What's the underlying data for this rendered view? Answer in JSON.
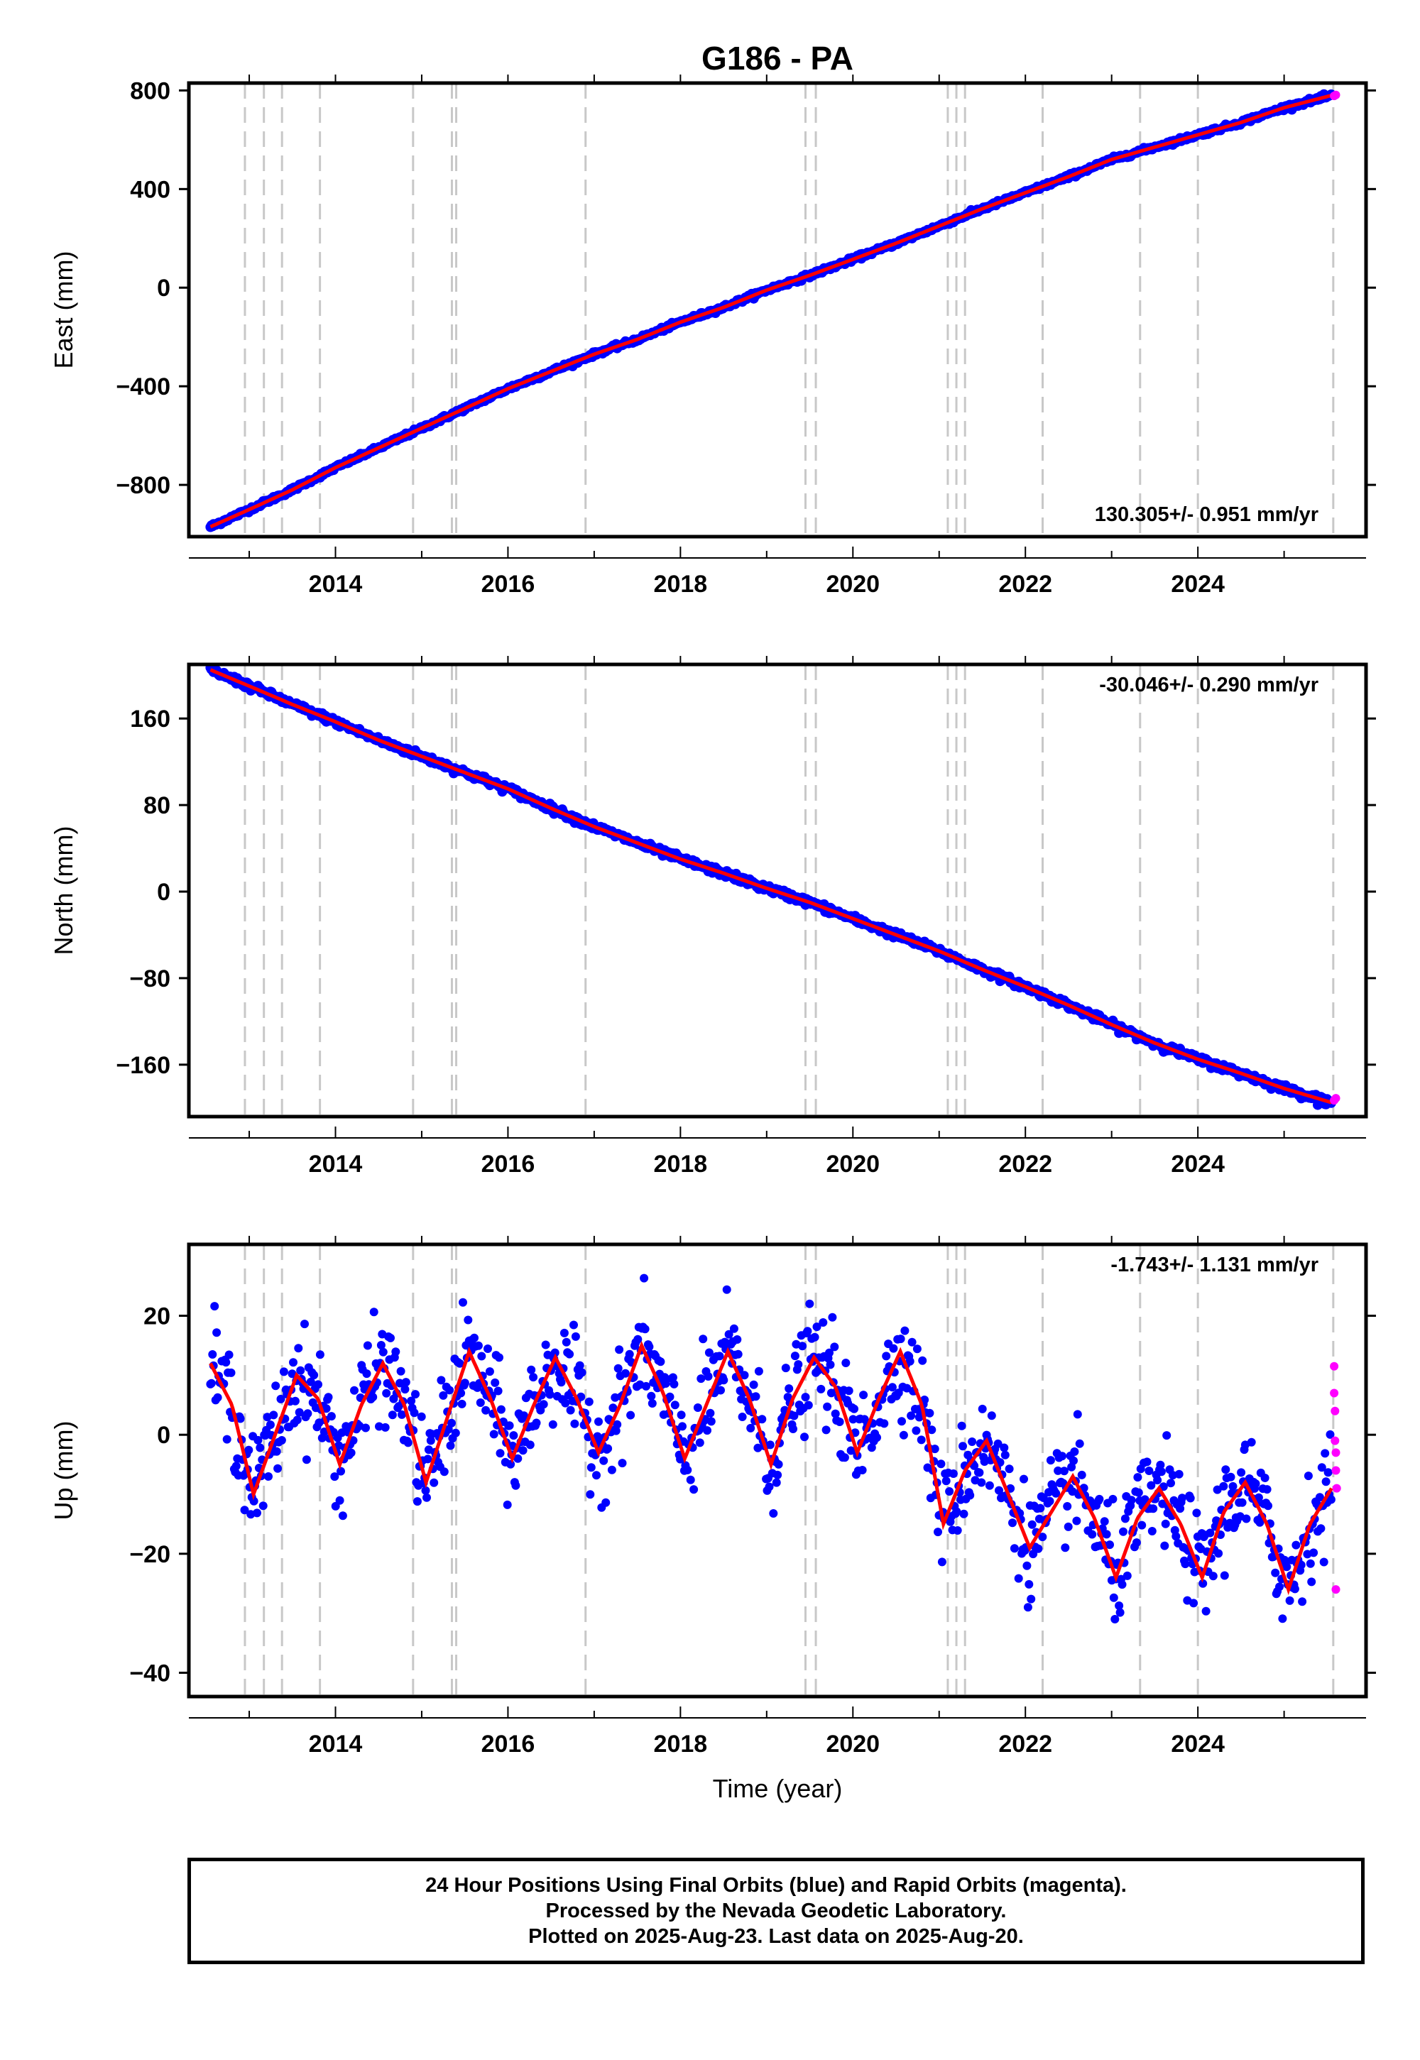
{
  "title": "G186 - PA",
  "footer": {
    "line1": "24 Hour Positions Using Final Orbits (blue) and Rapid Orbits (magenta).",
    "line2": "Processed by the Nevada Geodetic Laboratory.",
    "line3": "Plotted on 2025-Aug-23. Last data on 2025-Aug-20."
  },
  "colors": {
    "final": "#0000ff",
    "rapid": "#ff00ff",
    "model": "#ff0000",
    "steps": "#c8c8c8"
  },
  "chart_data": [
    {
      "type": "scatter",
      "ylabel": "East (mm)",
      "xlabel": "",
      "rate_label": "130.305+/- 0.951 mm/yr",
      "xlim": [
        2012.3,
        2025.95
      ],
      "ylim": [
        -1010,
        830
      ],
      "xticks": [
        2014,
        2016,
        2018,
        2020,
        2022,
        2024
      ],
      "yticks": [
        -800,
        -400,
        0,
        400,
        800
      ],
      "ytick_labels": [
        "−800",
        "−400",
        "0",
        "400",
        "800"
      ],
      "series": [
        {
          "kind": "final",
          "x": [
            2012.55,
            2013.0,
            2013.5,
            2014.0,
            2014.5,
            2015.0,
            2015.5,
            2016.0,
            2016.5,
            2017.0,
            2017.5,
            2018.0,
            2018.5,
            2019.0,
            2019.5,
            2020.0,
            2020.5,
            2021.0,
            2021.5,
            2022.0,
            2022.5,
            2023.0,
            2023.5,
            2024.0,
            2024.5,
            2025.0,
            2025.55
          ],
          "y": [
            -970,
            -900,
            -820,
            -730,
            -650,
            -570,
            -490,
            -410,
            -340,
            -270,
            -210,
            -140,
            -80,
            -10,
            50,
            115,
            180,
            250,
            320,
            385,
            450,
            520,
            570,
            620,
            670,
            730,
            780
          ]
        },
        {
          "kind": "rapid",
          "x": [
            2025.58,
            2025.6
          ],
          "y": [
            778,
            782
          ]
        }
      ]
    },
    {
      "type": "scatter",
      "ylabel": "North (mm)",
      "xlabel": "",
      "rate_label": "-30.046+/- 0.290 mm/yr",
      "xlim": [
        2012.3,
        2025.95
      ],
      "ylim": [
        -208,
        210
      ],
      "xticks": [
        2014,
        2016,
        2018,
        2020,
        2022,
        2024
      ],
      "yticks": [
        -160,
        -80,
        0,
        80,
        160
      ],
      "ytick_labels": [
        "−160",
        "−80",
        "0",
        "80",
        "160"
      ],
      "series": [
        {
          "kind": "final",
          "x": [
            2012.55,
            2013.0,
            2013.5,
            2014.0,
            2014.5,
            2015.0,
            2015.5,
            2016.0,
            2016.5,
            2017.0,
            2017.5,
            2018.0,
            2018.5,
            2019.0,
            2019.5,
            2020.0,
            2020.5,
            2021.0,
            2021.5,
            2022.0,
            2022.5,
            2023.0,
            2023.5,
            2024.0,
            2024.5,
            2025.0,
            2025.55
          ],
          "y": [
            205,
            190,
            173,
            157,
            140,
            125,
            110,
            95,
            77,
            60,
            45,
            30,
            17,
            3,
            -10,
            -25,
            -40,
            -55,
            -72,
            -88,
            -105,
            -123,
            -140,
            -155,
            -168,
            -182,
            -195
          ]
        },
        {
          "kind": "rapid",
          "x": [
            2025.58,
            2025.6
          ],
          "y": [
            -193,
            -191
          ]
        }
      ]
    },
    {
      "type": "scatter",
      "ylabel": "Up (mm)",
      "xlabel": "Time (year)",
      "rate_label": "-1.743+/- 1.131 mm/yr",
      "xlim": [
        2012.3,
        2025.95
      ],
      "ylim": [
        -44,
        32
      ],
      "xticks": [
        2014,
        2016,
        2018,
        2020,
        2022,
        2024
      ],
      "yticks": [
        -40,
        -20,
        0,
        20
      ],
      "ytick_labels": [
        "−40",
        "−20",
        "0",
        "20"
      ],
      "series": [
        {
          "kind": "final",
          "x": [
            2012.55,
            2012.8,
            2013.05,
            2013.3,
            2013.55,
            2013.8,
            2014.05,
            2014.3,
            2014.55,
            2014.8,
            2015.05,
            2015.3,
            2015.55,
            2015.8,
            2016.05,
            2016.3,
            2016.55,
            2016.8,
            2017.05,
            2017.3,
            2017.55,
            2017.8,
            2018.05,
            2018.3,
            2018.55,
            2018.8,
            2019.05,
            2019.3,
            2019.55,
            2019.8,
            2020.05,
            2020.3,
            2020.55,
            2020.8,
            2021.05,
            2021.3,
            2021.55,
            2021.8,
            2022.05,
            2022.3,
            2022.55,
            2022.8,
            2023.05,
            2023.3,
            2023.55,
            2023.8,
            2024.05,
            2024.3,
            2024.55,
            2024.8,
            2025.05,
            2025.3,
            2025.55
          ],
          "y": [
            12,
            5,
            -10,
            0,
            10,
            6,
            -5,
            5,
            12,
            5,
            -8,
            3,
            14,
            6,
            -4,
            5,
            13,
            6,
            -3,
            5,
            15,
            7,
            -4,
            5,
            14,
            6,
            -5,
            6,
            13,
            8,
            -3,
            6,
            14,
            5,
            -15,
            -6,
            -1,
            -10,
            -19,
            -13,
            -7,
            -14,
            -24,
            -14,
            -9,
            -15,
            -24,
            -13,
            -8,
            -15,
            -26,
            -15,
            -9
          ]
        },
        {
          "kind": "rapid",
          "x": [
            2025.58,
            2025.58,
            2025.59,
            2025.59,
            2025.6,
            2025.6,
            2025.61,
            2025.6
          ],
          "y": [
            11.5,
            7,
            4,
            -1,
            -3,
            -6,
            -9,
            -26
          ]
        }
      ]
    }
  ]
}
